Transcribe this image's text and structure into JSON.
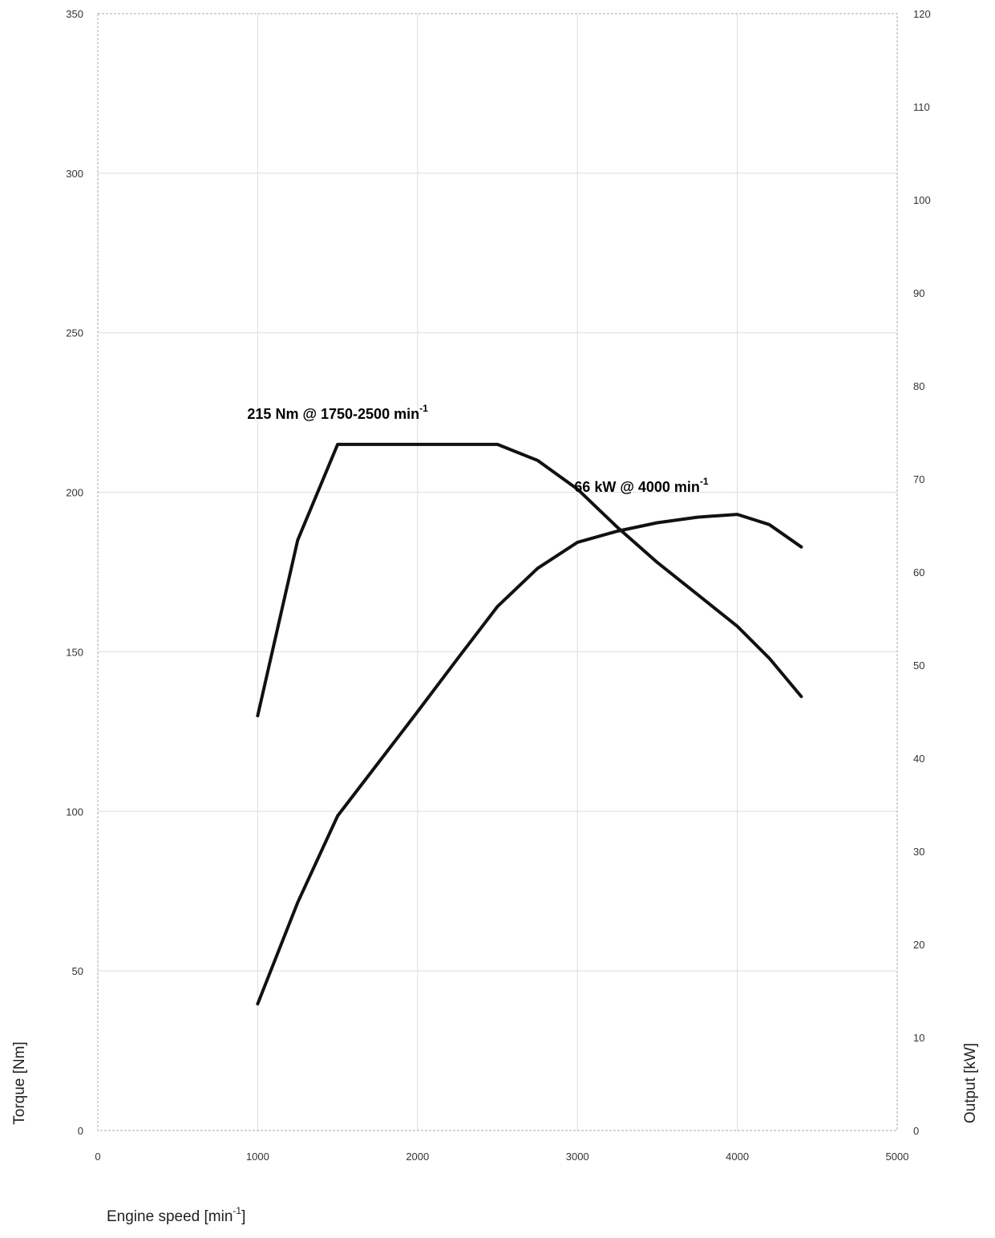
{
  "chart_data": {
    "type": "line",
    "xlabel": "Engine speed [min",
    "xlabel_sup": "-1",
    "xlabel_suffix": "]",
    "ylabel_left": "Torque [Nm]",
    "ylabel_right": "Output [kW]",
    "xlim": [
      0,
      5000
    ],
    "ylim_left": [
      0,
      350
    ],
    "ylim_right": [
      0,
      120
    ],
    "x_ticks": [
      0,
      1000,
      2000,
      3000,
      4000,
      5000
    ],
    "y_left_ticks": [
      0,
      50,
      100,
      150,
      200,
      250,
      300,
      350
    ],
    "y_right_ticks": [
      0,
      10,
      20,
      30,
      40,
      50,
      60,
      70,
      80,
      90,
      100,
      110,
      120
    ],
    "grid": true,
    "series": [
      {
        "axis": "left",
        "x": [
          1000,
          1250,
          1500,
          1750,
          2000,
          2250,
          2500,
          2750,
          3000,
          3250,
          3500,
          3750,
          4000,
          4200,
          4400
        ],
        "y": [
          130,
          185,
          215,
          215,
          215,
          215,
          215,
          210,
          201,
          189,
          178,
          168,
          158,
          148,
          136
        ]
      },
      {
        "axis": "right",
        "x": [
          1000,
          1250,
          1500,
          1750,
          2000,
          2250,
          2500,
          2750,
          3000,
          3250,
          3500,
          3750,
          4000,
          4200,
          4400
        ],
        "y": [
          13.6,
          24.5,
          33.8,
          39.4,
          45.0,
          50.7,
          56.3,
          60.4,
          63.2,
          64.4,
          65.3,
          65.9,
          66.2,
          65.1,
          62.7
        ]
      }
    ],
    "annotations": [
      {
        "text": "215 Nm @ 1750-2500 min",
        "sup": "-1",
        "axis": "left",
        "x": 1500,
        "y": 223
      },
      {
        "text": "66 kW @ 4000 min",
        "sup": "-1",
        "axis": "right",
        "x": 3400,
        "y": 68.6
      }
    ],
    "colors": {
      "line": "#111111",
      "grid": "#dddddd",
      "frame": "#aaaaaa"
    }
  }
}
